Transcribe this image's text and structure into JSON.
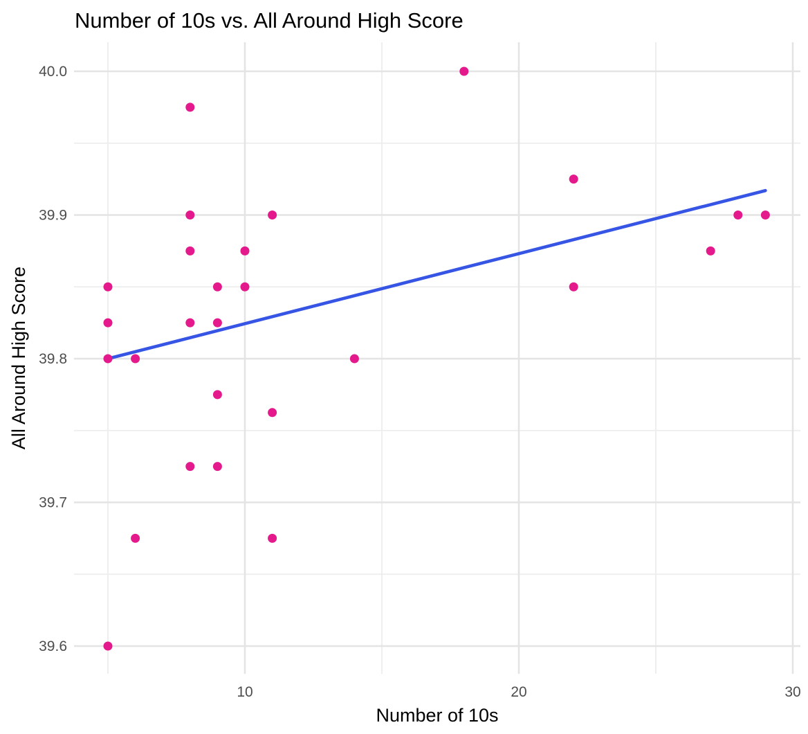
{
  "figure": {
    "title": "Number of 10s vs. All Around High Score",
    "x_axis_title": "Number of 10s",
    "y_axis_title": "All Around High Score"
  },
  "colors": {
    "background": "#FFFFFF",
    "point": "#E4198B",
    "trend": "#3655E5",
    "grid_major": "#E4E4E4",
    "grid_minor": "#EDEDED",
    "tick_label": "#4D4D4D",
    "title_text": "#000000"
  },
  "chart_data": {
    "type": "scatter",
    "title": "Number of 10s vs. All Around High Score",
    "xlabel": "Number of 10s",
    "ylabel": "All Around High Score",
    "xlim": [
      3.7626,
      30.2778
    ],
    "ylim": [
      39.58072,
      40.02024
    ],
    "grid": true,
    "legend": "none",
    "x_ticks": {
      "major": [
        10,
        20,
        30
      ],
      "minor": [
        5,
        15,
        25
      ]
    },
    "x_tick_labels": [
      "10",
      "20",
      "30"
    ],
    "y_ticks": {
      "major": [
        39.6,
        39.7,
        39.8,
        39.9,
        40.0
      ],
      "minor": [
        39.65,
        39.75,
        39.85,
        39.95
      ]
    },
    "y_tick_labels": [
      "39.6",
      "39.7",
      "39.8",
      "39.9",
      "40.0"
    ],
    "points": [
      {
        "x": 5,
        "y": 39.85
      },
      {
        "x": 5,
        "y": 39.825
      },
      {
        "x": 5,
        "y": 39.8
      },
      {
        "x": 5,
        "y": 39.6
      },
      {
        "x": 6,
        "y": 39.8
      },
      {
        "x": 6,
        "y": 39.675
      },
      {
        "x": 8,
        "y": 39.975
      },
      {
        "x": 8,
        "y": 39.9
      },
      {
        "x": 8,
        "y": 39.875
      },
      {
        "x": 8,
        "y": 39.825
      },
      {
        "x": 8,
        "y": 39.725
      },
      {
        "x": 9,
        "y": 39.85
      },
      {
        "x": 9,
        "y": 39.825
      },
      {
        "x": 9,
        "y": 39.775
      },
      {
        "x": 9,
        "y": 39.725
      },
      {
        "x": 10,
        "y": 39.875
      },
      {
        "x": 10,
        "y": 39.85
      },
      {
        "x": 11,
        "y": 39.9
      },
      {
        "x": 11,
        "y": 39.7625
      },
      {
        "x": 11,
        "y": 39.675
      },
      {
        "x": 14,
        "y": 39.8
      },
      {
        "x": 18,
        "y": 40.0
      },
      {
        "x": 22,
        "y": 39.925
      },
      {
        "x": 22,
        "y": 39.85
      },
      {
        "x": 27,
        "y": 39.875
      },
      {
        "x": 28,
        "y": 39.9
      },
      {
        "x": 29,
        "y": 39.9
      }
    ],
    "trend_line": {
      "type": "linear",
      "x_start": 5,
      "y_start": 39.8,
      "x_end": 29,
      "y_end": 39.917
    },
    "point_radius": 6.5,
    "trend_width": 4.6
  }
}
